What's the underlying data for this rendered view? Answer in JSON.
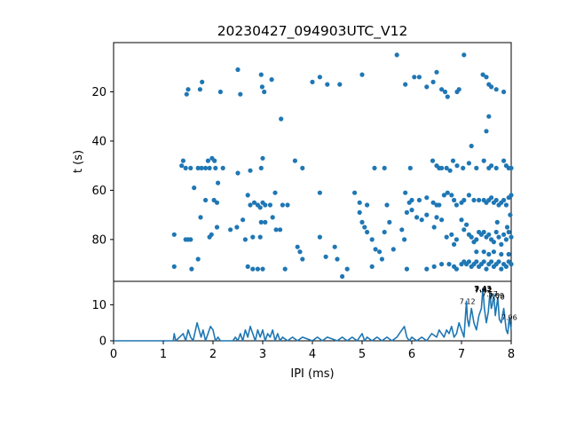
{
  "chart_data": [
    {
      "type": "scatter",
      "title": "20230427_094903UTC_V12",
      "xlabel": "",
      "ylabel": "t (s)",
      "xlim": [
        0,
        8
      ],
      "ylim": [
        97,
        0
      ],
      "y_inverted": true,
      "yticks": [
        20,
        40,
        60,
        80
      ],
      "color": "#1f77b4",
      "points": [
        [
          1.47,
          21
        ],
        [
          1.5,
          19
        ],
        [
          1.74,
          19
        ],
        [
          1.78,
          16
        ],
        [
          2.15,
          20
        ],
        [
          2.5,
          11
        ],
        [
          2.55,
          21
        ],
        [
          2.97,
          13
        ],
        [
          2.99,
          18
        ],
        [
          3.03,
          20
        ],
        [
          3.18,
          15
        ],
        [
          4.0,
          16
        ],
        [
          4.15,
          14
        ],
        [
          4.3,
          17
        ],
        [
          4.55,
          17
        ],
        [
          5.0,
          13
        ],
        [
          5.7,
          5
        ],
        [
          5.87,
          17
        ],
        [
          6.05,
          14
        ],
        [
          6.15,
          14
        ],
        [
          6.3,
          18
        ],
        [
          6.43,
          16
        ],
        [
          6.5,
          12
        ],
        [
          6.6,
          19
        ],
        [
          6.67,
          20
        ],
        [
          6.72,
          22
        ],
        [
          6.91,
          20
        ],
        [
          6.95,
          19
        ],
        [
          7.05,
          5
        ],
        [
          7.43,
          13
        ],
        [
          7.5,
          14
        ],
        [
          7.55,
          17
        ],
        [
          7.6,
          18
        ],
        [
          7.7,
          19
        ],
        [
          7.85,
          20
        ],
        [
          3.37,
          31
        ],
        [
          7.55,
          30
        ],
        [
          7.5,
          36
        ],
        [
          7.2,
          42
        ],
        [
          1.4,
          48
        ],
        [
          1.37,
          50
        ],
        [
          1.45,
          51
        ],
        [
          1.55,
          51
        ],
        [
          1.7,
          51
        ],
        [
          1.77,
          51
        ],
        [
          1.85,
          51
        ],
        [
          1.93,
          51
        ],
        [
          2.05,
          51
        ],
        [
          1.98,
          47
        ],
        [
          1.9,
          48
        ],
        [
          2.03,
          48
        ],
        [
          2.2,
          51
        ],
        [
          2.5,
          53
        ],
        [
          2.75,
          52
        ],
        [
          2.97,
          51
        ],
        [
          3.0,
          47
        ],
        [
          3.65,
          48
        ],
        [
          3.8,
          51
        ],
        [
          5.25,
          51
        ],
        [
          5.45,
          51
        ],
        [
          5.97,
          51
        ],
        [
          6.42,
          48
        ],
        [
          6.5,
          50
        ],
        [
          6.55,
          51
        ],
        [
          6.6,
          51
        ],
        [
          6.7,
          51
        ],
        [
          6.77,
          52
        ],
        [
          6.83,
          48
        ],
        [
          6.91,
          50
        ],
        [
          7.03,
          51
        ],
        [
          7.15,
          49
        ],
        [
          7.3,
          51
        ],
        [
          7.45,
          48
        ],
        [
          7.55,
          51
        ],
        [
          7.6,
          50
        ],
        [
          7.7,
          51
        ],
        [
          7.85,
          48
        ],
        [
          7.9,
          50
        ],
        [
          7.95,
          51
        ],
        [
          8.0,
          51
        ],
        [
          1.62,
          59
        ],
        [
          1.85,
          64
        ],
        [
          2.02,
          64
        ],
        [
          2.08,
          65
        ],
        [
          2.1,
          57
        ],
        [
          2.7,
          62
        ],
        [
          2.75,
          66
        ],
        [
          2.83,
          65
        ],
        [
          2.9,
          66
        ],
        [
          2.95,
          67
        ],
        [
          3.0,
          65
        ],
        [
          3.05,
          66
        ],
        [
          3.15,
          66
        ],
        [
          3.25,
          61
        ],
        [
          3.4,
          66
        ],
        [
          3.5,
          66
        ],
        [
          4.15,
          61
        ],
        [
          4.85,
          61
        ],
        [
          4.95,
          65
        ],
        [
          5.1,
          66
        ],
        [
          5.5,
          66
        ],
        [
          5.87,
          61
        ],
        [
          5.95,
          65
        ],
        [
          6.0,
          64
        ],
        [
          6.15,
          64
        ],
        [
          6.3,
          63
        ],
        [
          6.43,
          65
        ],
        [
          6.5,
          66
        ],
        [
          6.55,
          66
        ],
        [
          6.65,
          62
        ],
        [
          6.72,
          61
        ],
        [
          6.8,
          62
        ],
        [
          6.85,
          64
        ],
        [
          6.9,
          66
        ],
        [
          7.0,
          65
        ],
        [
          7.05,
          64
        ],
        [
          7.15,
          62
        ],
        [
          7.25,
          64
        ],
        [
          7.35,
          64
        ],
        [
          7.45,
          64
        ],
        [
          7.5,
          65
        ],
        [
          7.55,
          64
        ],
        [
          7.6,
          63
        ],
        [
          7.65,
          65
        ],
        [
          7.7,
          64
        ],
        [
          7.75,
          66
        ],
        [
          7.8,
          65
        ],
        [
          7.85,
          64
        ],
        [
          7.9,
          66
        ],
        [
          7.95,
          63
        ],
        [
          8.0,
          62
        ],
        [
          1.22,
          78
        ],
        [
          1.45,
          80
        ],
        [
          1.5,
          80
        ],
        [
          1.55,
          80
        ],
        [
          1.7,
          88
        ],
        [
          1.75,
          71
        ],
        [
          1.93,
          79
        ],
        [
          1.97,
          78
        ],
        [
          2.08,
          75
        ],
        [
          2.35,
          76
        ],
        [
          2.48,
          75
        ],
        [
          2.6,
          72
        ],
        [
          2.65,
          80
        ],
        [
          2.8,
          79
        ],
        [
          2.95,
          79
        ],
        [
          2.97,
          73
        ],
        [
          3.05,
          73
        ],
        [
          3.2,
          71
        ],
        [
          3.27,
          76
        ],
        [
          3.35,
          76
        ],
        [
          3.7,
          83
        ],
        [
          3.75,
          85
        ],
        [
          4.15,
          79
        ],
        [
          4.27,
          87
        ],
        [
          4.45,
          83
        ],
        [
          4.6,
          95
        ],
        [
          4.95,
          69
        ],
        [
          5.0,
          73
        ],
        [
          5.05,
          75
        ],
        [
          5.1,
          77
        ],
        [
          5.2,
          80
        ],
        [
          5.27,
          84
        ],
        [
          5.35,
          85
        ],
        [
          5.45,
          77
        ],
        [
          5.55,
          73
        ],
        [
          5.63,
          84
        ],
        [
          5.8,
          76
        ],
        [
          5.85,
          80
        ],
        [
          5.9,
          69
        ],
        [
          6.0,
          68
        ],
        [
          6.1,
          71
        ],
        [
          6.2,
          72
        ],
        [
          6.3,
          70
        ],
        [
          6.45,
          75
        ],
        [
          6.5,
          71
        ],
        [
          6.6,
          72
        ],
        [
          6.7,
          79
        ],
        [
          6.8,
          78
        ],
        [
          6.85,
          82
        ],
        [
          6.9,
          80
        ],
        [
          7.0,
          72
        ],
        [
          7.05,
          76
        ],
        [
          7.1,
          74
        ],
        [
          7.15,
          78
        ],
        [
          7.2,
          79
        ],
        [
          7.25,
          81
        ],
        [
          7.3,
          80
        ],
        [
          7.35,
          77
        ],
        [
          7.4,
          78
        ],
        [
          7.45,
          77
        ],
        [
          7.5,
          79
        ],
        [
          7.55,
          78
        ],
        [
          7.6,
          80
        ],
        [
          7.65,
          81
        ],
        [
          7.7,
          77
        ],
        [
          7.75,
          79
        ],
        [
          7.8,
          82
        ],
        [
          7.85,
          78
        ],
        [
          7.9,
          80
        ],
        [
          7.95,
          77
        ],
        [
          8.0,
          79
        ],
        [
          7.3,
          85
        ],
        [
          7.45,
          85
        ],
        [
          7.55,
          86
        ],
        [
          7.65,
          85
        ],
        [
          7.8,
          86
        ],
        [
          7.95,
          86
        ],
        [
          7.72,
          73
        ],
        [
          7.92,
          75
        ],
        [
          7.98,
          70
        ],
        [
          1.22,
          91
        ],
        [
          1.57,
          92
        ],
        [
          2.7,
          91
        ],
        [
          2.8,
          92
        ],
        [
          2.9,
          92
        ],
        [
          3.0,
          92
        ],
        [
          3.45,
          92
        ],
        [
          3.8,
          88
        ],
        [
          4.5,
          88
        ],
        [
          4.7,
          92
        ],
        [
          5.2,
          91
        ],
        [
          5.4,
          88
        ],
        [
          5.9,
          92
        ],
        [
          6.3,
          92
        ],
        [
          6.45,
          91
        ],
        [
          6.6,
          90
        ],
        [
          6.75,
          90
        ],
        [
          6.85,
          91
        ],
        [
          6.9,
          92
        ],
        [
          7.0,
          90
        ],
        [
          7.05,
          89
        ],
        [
          7.1,
          90
        ],
        [
          7.15,
          89
        ],
        [
          7.2,
          91
        ],
        [
          7.25,
          90
        ],
        [
          7.3,
          89
        ],
        [
          7.35,
          91
        ],
        [
          7.4,
          90
        ],
        [
          7.45,
          89
        ],
        [
          7.5,
          92
        ],
        [
          7.55,
          90
        ],
        [
          7.6,
          89
        ],
        [
          7.65,
          91
        ],
        [
          7.7,
          90
        ],
        [
          7.75,
          89
        ],
        [
          7.8,
          92
        ],
        [
          7.85,
          90
        ],
        [
          7.9,
          91
        ],
        [
          7.95,
          89
        ],
        [
          8.0,
          90
        ]
      ]
    },
    {
      "type": "line",
      "xlabel": "IPI (ms)",
      "ylabel": "",
      "xlim": [
        0,
        8
      ],
      "ylim": [
        0,
        16.5
      ],
      "xticks": [
        0,
        1,
        2,
        3,
        4,
        5,
        6,
        7,
        8
      ],
      "yticks": [
        0,
        10
      ],
      "color": "#1f77b4",
      "x": [
        0,
        1.2,
        1.22,
        1.25,
        1.4,
        1.45,
        1.5,
        1.55,
        1.6,
        1.68,
        1.72,
        1.76,
        1.8,
        1.85,
        1.9,
        1.95,
        2.0,
        2.05,
        2.1,
        2.15,
        2.2,
        2.4,
        2.45,
        2.5,
        2.55,
        2.6,
        2.65,
        2.7,
        2.75,
        2.8,
        2.85,
        2.9,
        2.95,
        3.0,
        3.05,
        3.1,
        3.15,
        3.2,
        3.25,
        3.3,
        3.35,
        3.4,
        3.5,
        3.6,
        3.7,
        3.8,
        4.0,
        4.1,
        4.2,
        4.3,
        4.5,
        4.6,
        4.7,
        4.8,
        4.9,
        5.0,
        5.05,
        5.1,
        5.2,
        5.3,
        5.4,
        5.5,
        5.6,
        5.7,
        5.8,
        5.85,
        5.9,
        5.95,
        6.0,
        6.1,
        6.2,
        6.3,
        6.4,
        6.5,
        6.55,
        6.6,
        6.65,
        6.7,
        6.75,
        6.8,
        6.85,
        6.9,
        6.95,
        7.0,
        7.05,
        7.1,
        7.12,
        7.15,
        7.2,
        7.25,
        7.3,
        7.35,
        7.4,
        7.43,
        7.46,
        7.5,
        7.54,
        7.57,
        7.6,
        7.62,
        7.65,
        7.68,
        7.7,
        7.73,
        7.76,
        7.8,
        7.85,
        7.9,
        7.93,
        7.96,
        8.0
      ],
      "y": [
        0,
        0,
        2,
        0,
        2,
        0,
        3,
        1,
        0,
        5,
        3,
        1,
        3,
        0,
        2,
        4,
        3,
        0,
        1,
        0,
        0,
        0,
        1,
        0,
        2,
        0,
        3,
        1,
        4,
        2,
        0,
        3,
        1,
        3,
        0,
        2,
        1,
        3,
        0,
        2,
        0,
        1,
        0,
        1,
        0,
        1,
        0,
        1,
        0,
        1,
        0,
        1,
        0,
        1,
        0,
        2,
        0,
        1,
        0,
        1,
        0,
        1,
        0,
        1,
        3,
        4,
        1,
        0,
        1,
        0,
        1,
        0,
        2,
        1,
        3,
        2,
        1,
        3,
        2,
        4,
        1,
        2,
        5,
        3,
        1,
        11,
        6,
        4,
        9,
        5,
        3,
        7,
        9,
        14.5,
        9,
        5,
        8,
        13,
        9,
        10,
        13,
        7,
        9,
        12,
        6,
        5,
        9,
        3,
        2,
        6.5,
        3
      ],
      "annotations": [
        {
          "x": 7.12,
          "y": 11,
          "label": "7.12"
        },
        {
          "x": 7.43,
          "y": 14.5,
          "label": "7.43"
        },
        {
          "x": 7.44,
          "y": 14.2,
          "label": "7.42"
        },
        {
          "x": 7.57,
          "y": 13,
          "label": "7.57"
        },
        {
          "x": 7.7,
          "y": 12.5,
          "label": "7.69"
        },
        {
          "x": 7.71,
          "y": 12.2,
          "label": "7.70"
        },
        {
          "x": 7.96,
          "y": 6.5,
          "label": "7.96"
        }
      ]
    }
  ]
}
